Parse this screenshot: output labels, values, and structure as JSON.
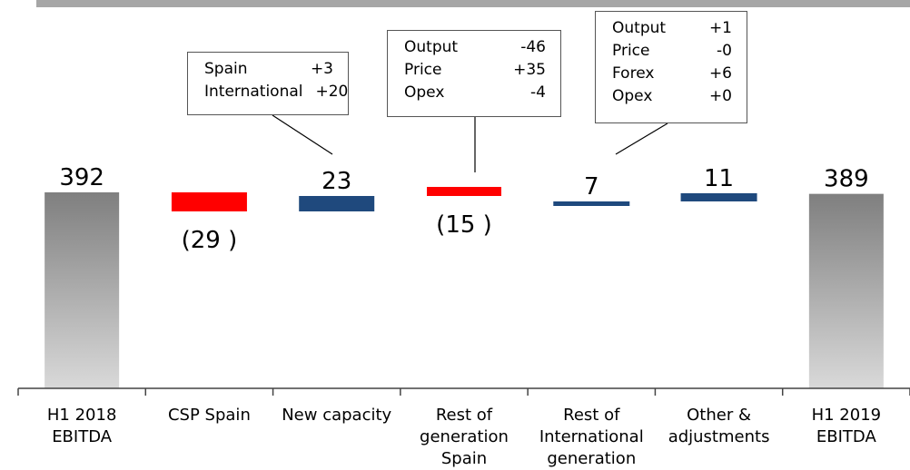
{
  "chart_data": {
    "type": "waterfall",
    "categories": [
      [
        "H1 2018",
        "EBITDA"
      ],
      [
        "CSP Spain"
      ],
      [
        "New capacity"
      ],
      [
        "Rest of",
        "generation",
        "Spain"
      ],
      [
        "Rest of",
        "International",
        "generation"
      ],
      [
        "Other &",
        "adjustments"
      ],
      [
        "H1 2019",
        "EBITDA"
      ]
    ],
    "steps": [
      {
        "kind": "total",
        "value": 392,
        "label": "392"
      },
      {
        "kind": "delta",
        "value": -29,
        "label": "(29 )"
      },
      {
        "kind": "delta",
        "value": 23,
        "label": "23"
      },
      {
        "kind": "delta",
        "value": -15,
        "label": "(15 )"
      },
      {
        "kind": "delta",
        "value": 7,
        "label": "7"
      },
      {
        "kind": "delta",
        "value": 11,
        "label": "11"
      },
      {
        "kind": "total",
        "value": 389,
        "label": "389"
      }
    ],
    "colors": {
      "total_top": "#7f7f7f",
      "total_bottom": "#d9d9d9",
      "decrease": "#ff0000",
      "increase": "#1f497d"
    },
    "callouts": [
      {
        "step": 2,
        "rows": [
          [
            "Spain",
            "+3"
          ],
          [
            "International",
            "+20"
          ]
        ]
      },
      {
        "step": 3,
        "rows": [
          [
            "Output",
            "-46"
          ],
          [
            "Price",
            "+35"
          ],
          [
            "Opex",
            "-4"
          ]
        ]
      },
      {
        "step": 4,
        "rows": [
          [
            "Output",
            "+1"
          ],
          [
            "Price",
            "-0"
          ],
          [
            "Forex",
            "+6"
          ],
          [
            "Opex",
            "+0"
          ]
        ]
      }
    ]
  }
}
